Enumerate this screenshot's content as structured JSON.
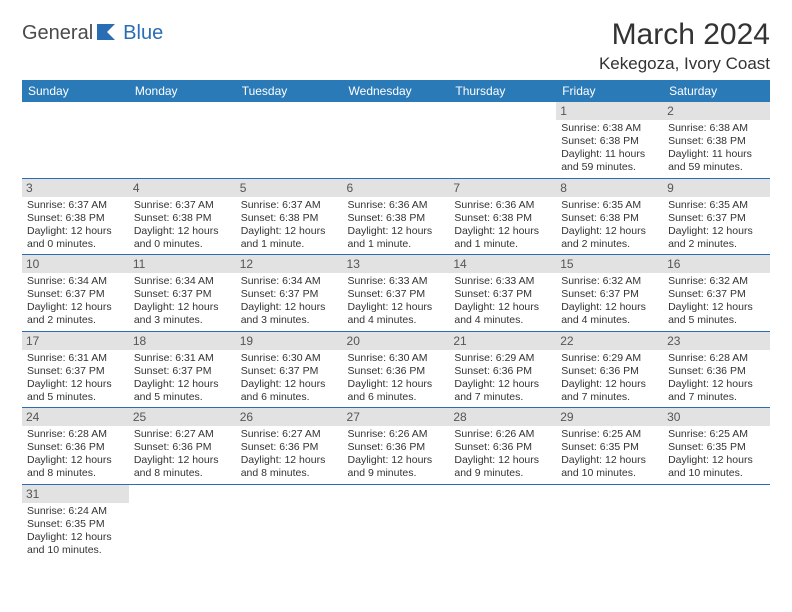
{
  "logo": {
    "part1": "General",
    "part2": "Blue"
  },
  "title": "March 2024",
  "location": "Kekegoza, Ivory Coast",
  "colors": {
    "header_bg": "#2a7ab8",
    "header_fg": "#ffffff",
    "row_border": "#2a6db5",
    "daynum_bg": "#e2e2e2",
    "logo_blue": "#2a6db5",
    "logo_grey": "#4a4a4a"
  },
  "dow": [
    "Sunday",
    "Monday",
    "Tuesday",
    "Wednesday",
    "Thursday",
    "Friday",
    "Saturday"
  ],
  "weeks": [
    [
      null,
      null,
      null,
      null,
      null,
      {
        "n": "1",
        "sr": "6:38 AM",
        "ss": "6:38 PM",
        "dl": "11 hours and 59 minutes."
      },
      {
        "n": "2",
        "sr": "6:38 AM",
        "ss": "6:38 PM",
        "dl": "11 hours and 59 minutes."
      }
    ],
    [
      {
        "n": "3",
        "sr": "6:37 AM",
        "ss": "6:38 PM",
        "dl": "12 hours and 0 minutes."
      },
      {
        "n": "4",
        "sr": "6:37 AM",
        "ss": "6:38 PM",
        "dl": "12 hours and 0 minutes."
      },
      {
        "n": "5",
        "sr": "6:37 AM",
        "ss": "6:38 PM",
        "dl": "12 hours and 1 minute."
      },
      {
        "n": "6",
        "sr": "6:36 AM",
        "ss": "6:38 PM",
        "dl": "12 hours and 1 minute."
      },
      {
        "n": "7",
        "sr": "6:36 AM",
        "ss": "6:38 PM",
        "dl": "12 hours and 1 minute."
      },
      {
        "n": "8",
        "sr": "6:35 AM",
        "ss": "6:38 PM",
        "dl": "12 hours and 2 minutes."
      },
      {
        "n": "9",
        "sr": "6:35 AM",
        "ss": "6:37 PM",
        "dl": "12 hours and 2 minutes."
      }
    ],
    [
      {
        "n": "10",
        "sr": "6:34 AM",
        "ss": "6:37 PM",
        "dl": "12 hours and 2 minutes."
      },
      {
        "n": "11",
        "sr": "6:34 AM",
        "ss": "6:37 PM",
        "dl": "12 hours and 3 minutes."
      },
      {
        "n": "12",
        "sr": "6:34 AM",
        "ss": "6:37 PM",
        "dl": "12 hours and 3 minutes."
      },
      {
        "n": "13",
        "sr": "6:33 AM",
        "ss": "6:37 PM",
        "dl": "12 hours and 4 minutes."
      },
      {
        "n": "14",
        "sr": "6:33 AM",
        "ss": "6:37 PM",
        "dl": "12 hours and 4 minutes."
      },
      {
        "n": "15",
        "sr": "6:32 AM",
        "ss": "6:37 PM",
        "dl": "12 hours and 4 minutes."
      },
      {
        "n": "16",
        "sr": "6:32 AM",
        "ss": "6:37 PM",
        "dl": "12 hours and 5 minutes."
      }
    ],
    [
      {
        "n": "17",
        "sr": "6:31 AM",
        "ss": "6:37 PM",
        "dl": "12 hours and 5 minutes."
      },
      {
        "n": "18",
        "sr": "6:31 AM",
        "ss": "6:37 PM",
        "dl": "12 hours and 5 minutes."
      },
      {
        "n": "19",
        "sr": "6:30 AM",
        "ss": "6:37 PM",
        "dl": "12 hours and 6 minutes."
      },
      {
        "n": "20",
        "sr": "6:30 AM",
        "ss": "6:36 PM",
        "dl": "12 hours and 6 minutes."
      },
      {
        "n": "21",
        "sr": "6:29 AM",
        "ss": "6:36 PM",
        "dl": "12 hours and 7 minutes."
      },
      {
        "n": "22",
        "sr": "6:29 AM",
        "ss": "6:36 PM",
        "dl": "12 hours and 7 minutes."
      },
      {
        "n": "23",
        "sr": "6:28 AM",
        "ss": "6:36 PM",
        "dl": "12 hours and 7 minutes."
      }
    ],
    [
      {
        "n": "24",
        "sr": "6:28 AM",
        "ss": "6:36 PM",
        "dl": "12 hours and 8 minutes."
      },
      {
        "n": "25",
        "sr": "6:27 AM",
        "ss": "6:36 PM",
        "dl": "12 hours and 8 minutes."
      },
      {
        "n": "26",
        "sr": "6:27 AM",
        "ss": "6:36 PM",
        "dl": "12 hours and 8 minutes."
      },
      {
        "n": "27",
        "sr": "6:26 AM",
        "ss": "6:36 PM",
        "dl": "12 hours and 9 minutes."
      },
      {
        "n": "28",
        "sr": "6:26 AM",
        "ss": "6:36 PM",
        "dl": "12 hours and 9 minutes."
      },
      {
        "n": "29",
        "sr": "6:25 AM",
        "ss": "6:35 PM",
        "dl": "12 hours and 10 minutes."
      },
      {
        "n": "30",
        "sr": "6:25 AM",
        "ss": "6:35 PM",
        "dl": "12 hours and 10 minutes."
      }
    ],
    [
      {
        "n": "31",
        "sr": "6:24 AM",
        "ss": "6:35 PM",
        "dl": "12 hours and 10 minutes."
      },
      null,
      null,
      null,
      null,
      null,
      null
    ]
  ],
  "labels": {
    "sunrise": "Sunrise:",
    "sunset": "Sunset:",
    "daylight": "Daylight:"
  }
}
